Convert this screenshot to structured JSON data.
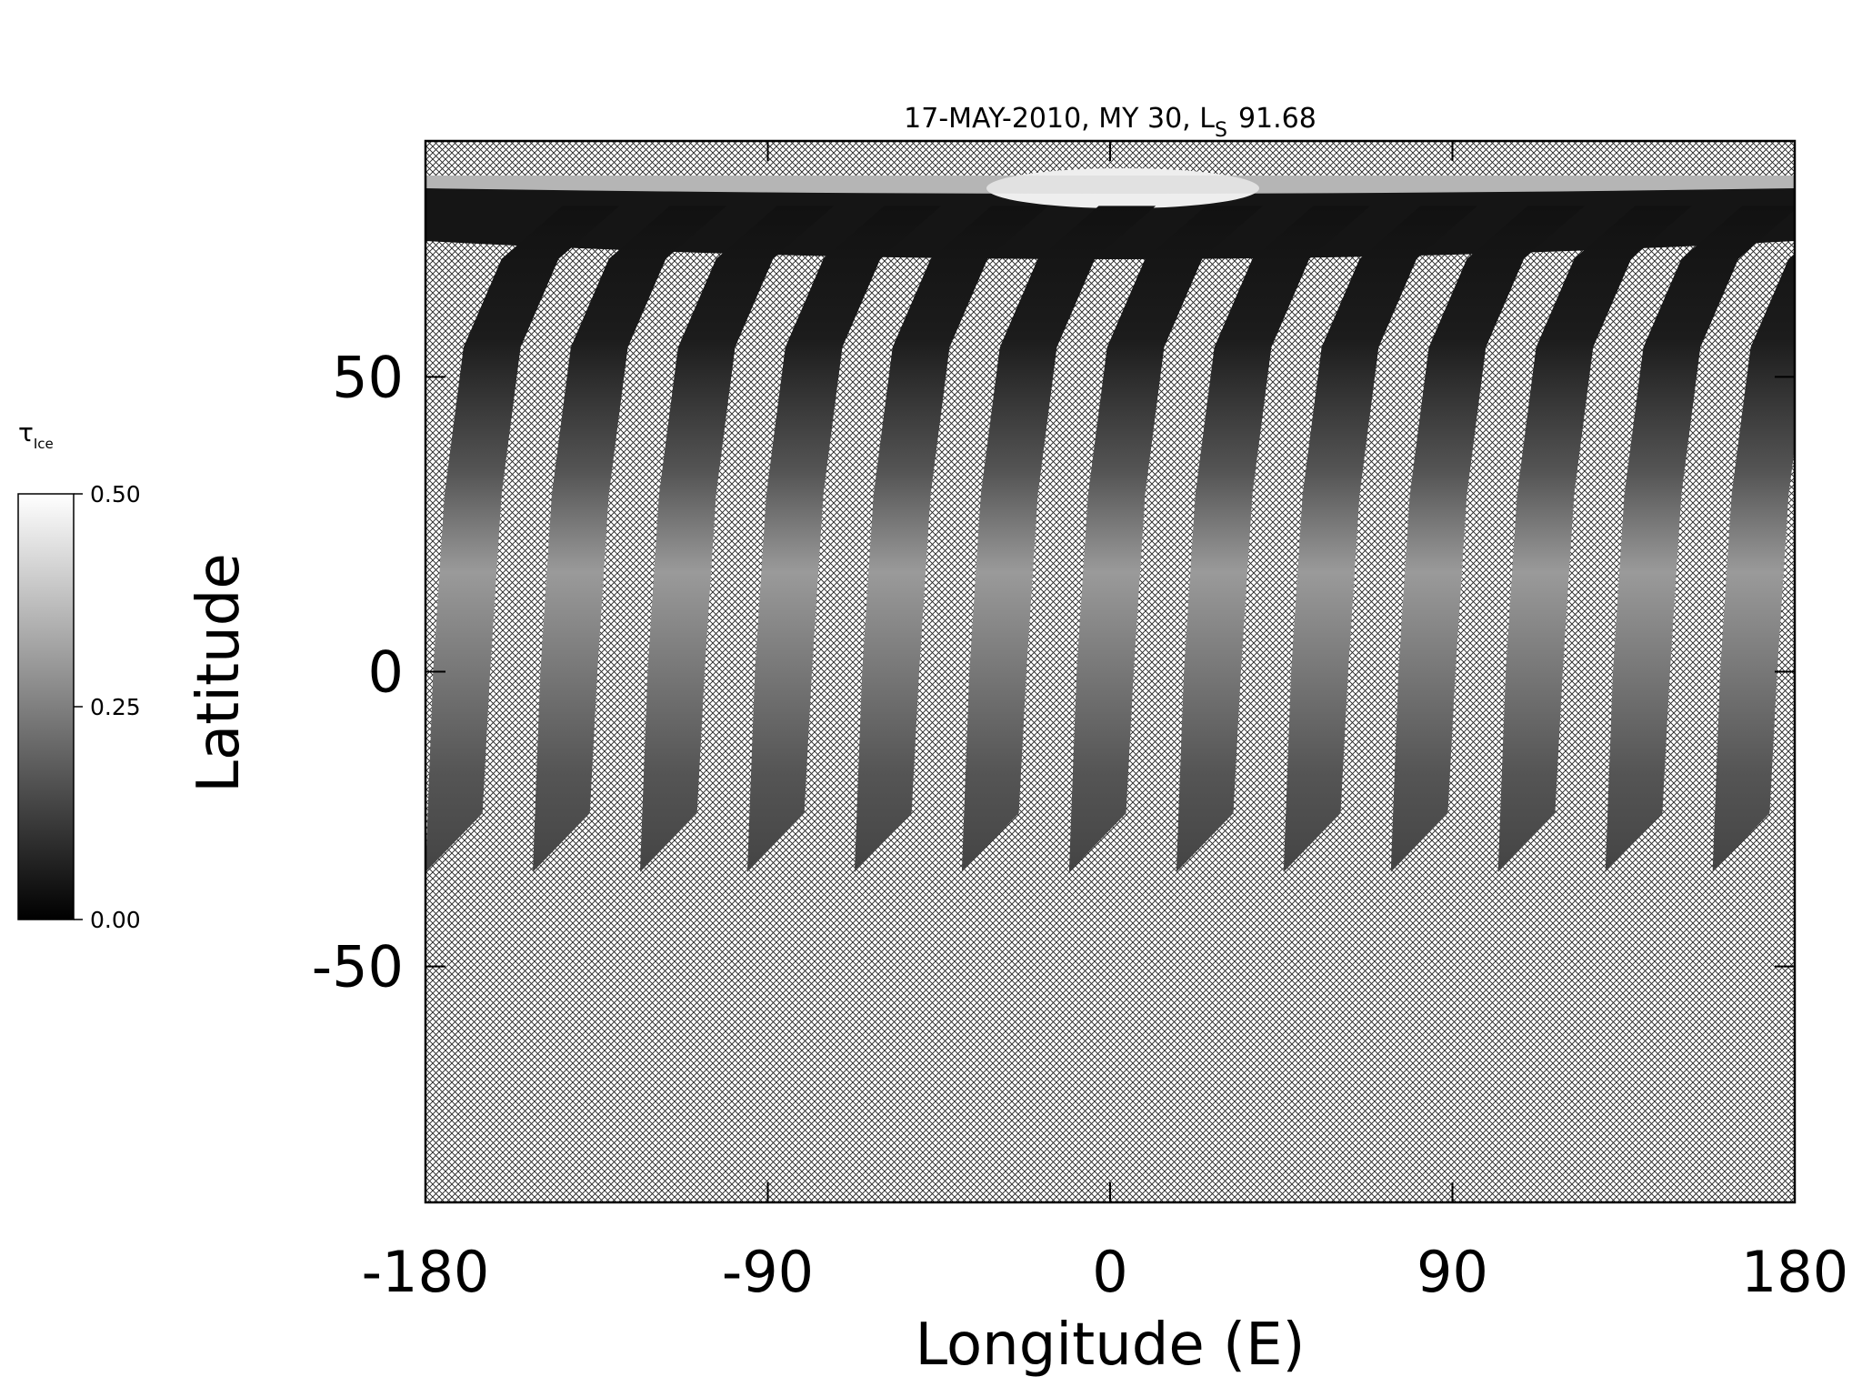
{
  "chart_data": {
    "type": "map",
    "title": {
      "main": "17-MAY-2010, MY 30,  L",
      "sub": "S",
      "tail": "91.68"
    },
    "xlabel": "Longitude (E)",
    "ylabel": "Latitude",
    "xlim": [
      -180,
      180
    ],
    "xticks": [
      -180,
      -90,
      0,
      90,
      180
    ],
    "ylim": [
      -90,
      90
    ],
    "yticks": [
      -50,
      0,
      50
    ],
    "colorbar": {
      "symbol": "τ",
      "sub": "Ice",
      "lim": [
        0,
        0.5
      ],
      "ticks": [
        {
          "value": 0.5,
          "label": "0.50"
        },
        {
          "value": 0.25,
          "label": "0.25"
        },
        {
          "value": 0,
          "label": "0.00"
        }
      ]
    }
  }
}
